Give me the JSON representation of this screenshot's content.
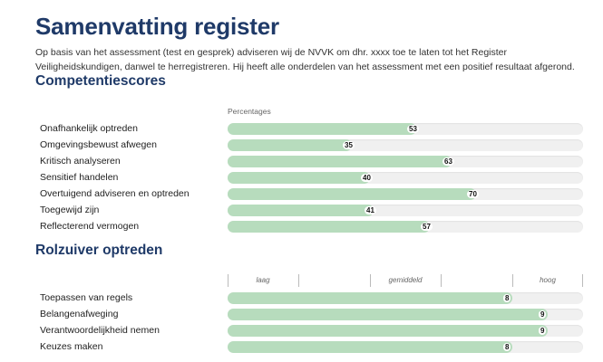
{
  "header": {
    "title": "Samenvatting register",
    "intro": "Op basis van het assessment (test en gesprek) adviseren wij de NVVK om dhr. xxxx   toe te laten tot het Register Veiligheidskundigen, danwel te herregistreren. Hij heeft alle onderdelen van het assessment met een positief resultaat afgerond."
  },
  "competenties": {
    "title": "Competentiescores",
    "axis_caption": "Percentages",
    "max": 100,
    "items": [
      {
        "label": "Onafhankelijk optreden",
        "value": 53
      },
      {
        "label": "Omgevingsbewust afwegen",
        "value": 35
      },
      {
        "label": "Kritisch analyseren",
        "value": 63
      },
      {
        "label": "Sensitief handelen",
        "value": 40
      },
      {
        "label": "Overtuigend adviseren en optreden",
        "value": 70
      },
      {
        "label": "Toegewijd zijn",
        "value": 41
      },
      {
        "label": "Reflecterend vermogen",
        "value": 57
      }
    ]
  },
  "rolzuiver": {
    "title": "Rolzuiver optreden",
    "scale": {
      "laag": "laag",
      "gemiddeld": "gemiddeld",
      "hoog": "hoog"
    },
    "max": 10,
    "items": [
      {
        "label": "Toepassen van regels",
        "value": 8
      },
      {
        "label": "Belangenafweging",
        "value": 9
      },
      {
        "label": "Verantwoordelijkheid nemen",
        "value": 9
      },
      {
        "label": "Keuzes maken",
        "value": 8
      }
    ]
  },
  "colors": {
    "title": "#1f3a68",
    "bar_fill": "#b7dcbd",
    "bar_track": "#f0f0f0"
  }
}
